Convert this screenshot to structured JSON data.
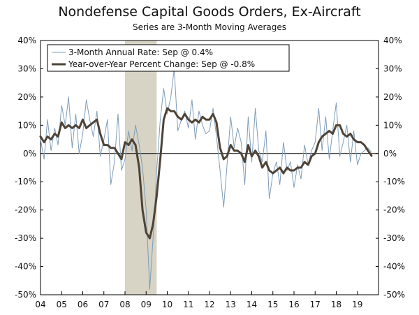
{
  "chart_data": {
    "type": "line",
    "title": "Nondefense Capital Goods Orders, Ex-Aircraft",
    "subtitle": "Series are 3-Month Moving Averages",
    "x_tick_labels": [
      "04",
      "05",
      "06",
      "07",
      "08",
      "09",
      "10",
      "11",
      "12",
      "13",
      "14",
      "15",
      "16",
      "17",
      "18",
      "19"
    ],
    "y_tick_labels": [
      "40%",
      "30%",
      "20%",
      "10%",
      "0%",
      "-10%",
      "-20%",
      "-30%",
      "-40%",
      "-50%"
    ],
    "x_range": [
      2004.0,
      2020.0
    ],
    "y_range": [
      -50,
      40
    ],
    "recession_shading": [
      2008.0,
      2009.5
    ],
    "colors": {
      "annual_rate": "#7f9db8",
      "yoy": "#4d4337",
      "recession": "#d7d3c5",
      "zero_line": "#000000"
    },
    "series": [
      {
        "name": "3-Month Annual Rate: Sep @ 0.4%",
        "x": [
          2004.0,
          2004.17,
          2004.33,
          2004.5,
          2004.67,
          2004.83,
          2005.0,
          2005.17,
          2005.33,
          2005.5,
          2005.67,
          2005.83,
          2006.0,
          2006.17,
          2006.33,
          2006.5,
          2006.67,
          2006.83,
          2007.0,
          2007.17,
          2007.33,
          2007.5,
          2007.67,
          2007.83,
          2008.0,
          2008.17,
          2008.33,
          2008.5,
          2008.67,
          2008.83,
          2009.0,
          2009.17,
          2009.33,
          2009.5,
          2009.67,
          2009.83,
          2010.0,
          2010.17,
          2010.33,
          2010.5,
          2010.67,
          2010.83,
          2011.0,
          2011.17,
          2011.33,
          2011.5,
          2011.67,
          2011.83,
          2012.0,
          2012.17,
          2012.33,
          2012.5,
          2012.67,
          2012.83,
          2013.0,
          2013.17,
          2013.33,
          2013.5,
          2013.67,
          2013.83,
          2014.0,
          2014.17,
          2014.33,
          2014.5,
          2014.67,
          2014.83,
          2015.0,
          2015.17,
          2015.33,
          2015.5,
          2015.67,
          2015.83,
          2016.0,
          2016.17,
          2016.33,
          2016.5,
          2016.67,
          2016.83,
          2017.0,
          2017.17,
          2017.33,
          2017.5,
          2017.67,
          2017.83,
          2018.0,
          2018.17,
          2018.33,
          2018.5,
          2018.67,
          2018.83,
          2019.0,
          2019.17,
          2019.33,
          2019.5,
          2019.67
        ],
        "values": [
          5,
          -2,
          12,
          1,
          9,
          3,
          17,
          10,
          20,
          2,
          14,
          0,
          7,
          19,
          12,
          6,
          15,
          -1,
          5,
          12,
          -11,
          -3,
          14,
          -6,
          -2,
          8,
          1,
          10,
          3,
          -5,
          -20,
          -48,
          -30,
          -6,
          12,
          23,
          14,
          20,
          30,
          8,
          12,
          15,
          9,
          19,
          5,
          15,
          10,
          7,
          8,
          16,
          6,
          -6,
          -19,
          -4,
          13,
          2,
          9,
          4,
          -11,
          13,
          -3,
          16,
          1,
          -3,
          8,
          -16,
          -7,
          -3,
          -11,
          4,
          -6,
          -3,
          -12,
          -4,
          -9,
          3,
          -4,
          1,
          4,
          16,
          1,
          13,
          -2,
          8,
          18,
          -1,
          4,
          10,
          -3,
          8,
          -4,
          0,
          1,
          2,
          0.4
        ]
      },
      {
        "name": "Year-over-Year Percent Change: Sep @ -0.8%",
        "x": [
          2004.0,
          2004.17,
          2004.33,
          2004.5,
          2004.67,
          2004.83,
          2005.0,
          2005.17,
          2005.33,
          2005.5,
          2005.67,
          2005.83,
          2006.0,
          2006.17,
          2006.33,
          2006.5,
          2006.67,
          2006.83,
          2007.0,
          2007.17,
          2007.33,
          2007.5,
          2007.67,
          2007.83,
          2008.0,
          2008.17,
          2008.33,
          2008.5,
          2008.67,
          2008.83,
          2009.0,
          2009.17,
          2009.33,
          2009.5,
          2009.67,
          2009.83,
          2010.0,
          2010.17,
          2010.33,
          2010.5,
          2010.67,
          2010.83,
          2011.0,
          2011.17,
          2011.33,
          2011.5,
          2011.67,
          2011.83,
          2012.0,
          2012.17,
          2012.33,
          2012.5,
          2012.67,
          2012.83,
          2013.0,
          2013.17,
          2013.33,
          2013.5,
          2013.67,
          2013.83,
          2014.0,
          2014.17,
          2014.33,
          2014.5,
          2014.67,
          2014.83,
          2015.0,
          2015.17,
          2015.33,
          2015.5,
          2015.67,
          2015.83,
          2016.0,
          2016.17,
          2016.33,
          2016.5,
          2016.67,
          2016.83,
          2017.0,
          2017.17,
          2017.33,
          2017.5,
          2017.67,
          2017.83,
          2018.0,
          2018.17,
          2018.33,
          2018.5,
          2018.67,
          2018.83,
          2019.0,
          2019.17,
          2019.33,
          2019.5,
          2019.67
        ],
        "values": [
          6,
          4,
          6,
          5,
          7,
          6,
          11,
          9,
          10,
          9,
          10,
          9,
          12,
          9,
          10,
          11,
          12,
          7,
          3,
          3,
          2,
          2,
          0,
          -2,
          4,
          3,
          5,
          3,
          -5,
          -20,
          -28,
          -30,
          -25,
          -15,
          -2,
          12,
          16,
          15,
          15,
          13,
          12,
          14,
          12,
          11,
          12,
          11,
          13,
          12,
          12,
          14,
          11,
          2,
          -2,
          -1,
          3,
          1,
          1,
          0,
          -3,
          3,
          -1,
          1,
          -1,
          -5,
          -3,
          -6,
          -7,
          -6,
          -5,
          -7,
          -5,
          -6,
          -6,
          -5,
          -5,
          -3,
          -4,
          -1,
          0,
          4,
          6,
          7,
          8,
          7,
          10,
          10,
          7,
          6,
          7,
          5,
          4,
          4,
          3,
          1,
          -0.8
        ]
      }
    ]
  }
}
